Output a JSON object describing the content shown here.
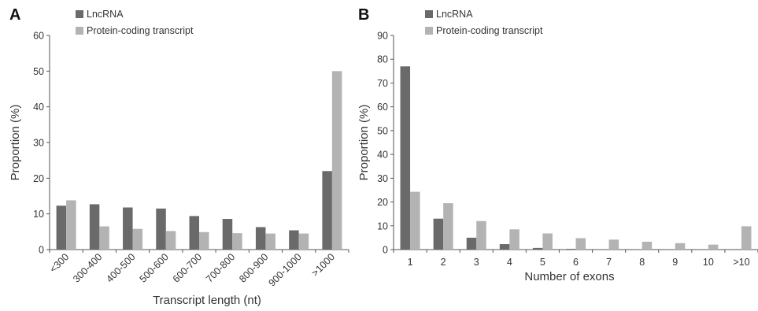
{
  "chart_data": [
    {
      "panel": "A",
      "type": "bar",
      "categories": [
        "<300",
        "300-400",
        "400-500",
        "500-600",
        "600-700",
        "700-800",
        "800-900",
        "900-1000",
        ">1000"
      ],
      "series": [
        {
          "name": "LncRNA",
          "color": "#6a6a6a",
          "values": [
            12.3,
            12.7,
            11.8,
            11.5,
            9.4,
            8.6,
            6.3,
            5.4,
            22.0
          ]
        },
        {
          "name": "Protein-coding transcript",
          "color": "#b3b3b3",
          "values": [
            13.8,
            6.5,
            5.8,
            5.2,
            4.9,
            4.6,
            4.5,
            4.5,
            50.0
          ]
        }
      ],
      "xlabel": "Transcript length (nt)",
      "ylabel": "Proportion (%)",
      "ylim": [
        0,
        60
      ],
      "yticks": [
        0,
        10,
        20,
        30,
        40,
        50,
        60
      ],
      "legend": "top-left",
      "grid": false
    },
    {
      "panel": "B",
      "type": "bar",
      "categories": [
        "1",
        "2",
        "3",
        "4",
        "5",
        "6",
        "7",
        "8",
        "9",
        "10",
        ">10"
      ],
      "series": [
        {
          "name": "LncRNA",
          "color": "#6a6a6a",
          "values": [
            77.0,
            13.0,
            5.0,
            2.3,
            0.7,
            0.3,
            0.1,
            0.1,
            0.1,
            0.1,
            0.2
          ]
        },
        {
          "name": "Protein-coding transcript",
          "color": "#b3b3b3",
          "values": [
            24.3,
            19.5,
            12.0,
            8.5,
            6.8,
            4.8,
            4.2,
            3.3,
            2.7,
            2.1,
            9.8
          ]
        }
      ],
      "xlabel": "Number of exons",
      "ylabel": "Proportion (%)",
      "ylim": [
        0,
        90
      ],
      "yticks": [
        0,
        10,
        20,
        30,
        40,
        50,
        60,
        70,
        80,
        90
      ],
      "legend": "top-left",
      "grid": false
    }
  ]
}
